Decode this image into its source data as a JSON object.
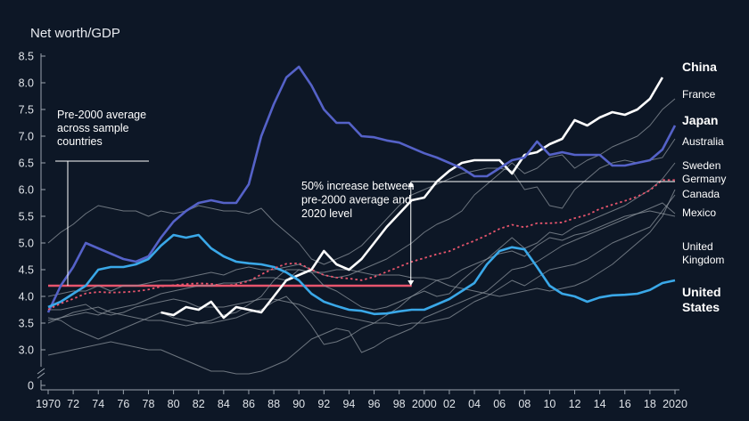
{
  "chart_data": {
    "type": "line",
    "ylabel": "Net worth/GDP",
    "ylim": [
      0,
      8.5
    ],
    "yticks": [
      "8.5",
      "8.0",
      "7.5",
      "7.0",
      "6.5",
      "6.0",
      "5.5",
      "5.0",
      "4.5",
      "4.0",
      "3.5",
      "3.0",
      "0"
    ],
    "ytick_values": [
      8.5,
      8.0,
      7.5,
      7.0,
      6.5,
      6.0,
      5.5,
      5.0,
      4.5,
      4.0,
      3.5,
      3.0,
      2.4
    ],
    "xlim": [
      1970,
      2020
    ],
    "xticks": [
      {
        "x": 1970,
        "label": "1970"
      },
      {
        "x": 1972,
        "label": "72"
      },
      {
        "x": 1974,
        "label": "74"
      },
      {
        "x": 1976,
        "label": "76"
      },
      {
        "x": 1978,
        "label": "78"
      },
      {
        "x": 1980,
        "label": "80"
      },
      {
        "x": 1982,
        "label": "82"
      },
      {
        "x": 1984,
        "label": "84"
      },
      {
        "x": 1986,
        "label": "86"
      },
      {
        "x": 1988,
        "label": "88"
      },
      {
        "x": 1990,
        "label": "90"
      },
      {
        "x": 1992,
        "label": "92"
      },
      {
        "x": 1994,
        "label": "94"
      },
      {
        "x": 1996,
        "label": "96"
      },
      {
        "x": 1998,
        "label": "98"
      },
      {
        "x": 2000,
        "label": "2000"
      },
      {
        "x": 2002,
        "label": "02"
      },
      {
        "x": 2004,
        "label": "04"
      },
      {
        "x": 2006,
        "label": "06"
      },
      {
        "x": 2008,
        "label": "08"
      },
      {
        "x": 2010,
        "label": "10"
      },
      {
        "x": 2012,
        "label": "12"
      },
      {
        "x": 2014,
        "label": "14"
      },
      {
        "x": 2016,
        "label": "16"
      },
      {
        "x": 2018,
        "label": "18"
      },
      {
        "x": 2020,
        "label": "2020"
      }
    ],
    "pre2000_average": 4.2,
    "avg_2020_level": 6.15,
    "annotations": [
      {
        "id": "pre2000",
        "lines": [
          "Pre-2000 average",
          "across sample",
          "countries"
        ]
      },
      {
        "id": "increase",
        "lines": [
          "50% increase between",
          "pre-2000 average and",
          "2020 level"
        ]
      }
    ],
    "series": [
      {
        "name": "China",
        "highlight": "white",
        "label_lines": [
          "China"
        ],
        "start": 1979,
        "values": [
          3.7,
          3.65,
          3.8,
          3.75,
          3.9,
          3.6,
          3.8,
          3.75,
          3.7,
          4.0,
          4.3,
          4.4,
          4.5,
          4.85,
          4.6,
          4.5,
          4.7,
          5.0,
          5.3,
          5.55,
          5.8,
          5.85,
          6.15,
          6.35,
          6.5,
          6.55,
          6.55,
          6.55,
          6.3,
          6.65,
          6.7,
          6.85,
          6.95,
          7.3,
          7.2,
          7.35,
          7.45,
          7.4,
          7.5,
          7.7,
          8.1
        ]
      },
      {
        "name": "France",
        "highlight": "grey",
        "label_lines": [
          "France"
        ],
        "start": 1970,
        "values": [
          4.0,
          4.05,
          4.1,
          4.1,
          4.2,
          4.1,
          4.2,
          4.2,
          4.25,
          4.3,
          4.3,
          4.35,
          4.4,
          4.45,
          4.4,
          4.5,
          4.55,
          4.5,
          4.5,
          4.55,
          4.6,
          4.5,
          4.4,
          4.35,
          4.4,
          4.5,
          4.6,
          4.7,
          4.85,
          5.0,
          5.2,
          5.35,
          5.45,
          5.6,
          5.9,
          6.1,
          6.3,
          6.5,
          6.3,
          6.4,
          6.6,
          6.65,
          6.4,
          6.55,
          6.65,
          6.8,
          6.9,
          7.0,
          7.2,
          7.5,
          7.7
        ]
      },
      {
        "name": "Japan",
        "highlight": "purple",
        "label_lines": [
          "Japan"
        ],
        "start": 1970,
        "values": [
          3.7,
          4.2,
          4.55,
          5.0,
          4.9,
          4.8,
          4.7,
          4.65,
          4.75,
          5.1,
          5.4,
          5.6,
          5.75,
          5.8,
          5.75,
          5.75,
          6.1,
          7.0,
          7.6,
          8.1,
          8.3,
          7.95,
          7.5,
          7.25,
          7.25,
          7.0,
          6.98,
          6.92,
          6.88,
          6.78,
          6.68,
          6.6,
          6.5,
          6.4,
          6.25,
          6.25,
          6.4,
          6.55,
          6.6,
          6.9,
          6.65,
          6.7,
          6.65,
          6.65,
          6.65,
          6.45,
          6.45,
          6.5,
          6.55,
          6.75,
          7.2
        ]
      },
      {
        "name": "Australia",
        "highlight": "grey",
        "label_lines": [
          "Australia"
        ],
        "start": 1970,
        "values": [
          5.0,
          5.2,
          5.35,
          5.55,
          5.7,
          5.65,
          5.6,
          5.6,
          5.5,
          5.6,
          5.55,
          5.6,
          5.7,
          5.65,
          5.6,
          5.6,
          5.55,
          5.65,
          5.4,
          5.2,
          5.0,
          4.7,
          4.6,
          4.7,
          4.8,
          4.95,
          5.2,
          5.45,
          5.7,
          5.9,
          6.0,
          6.1,
          6.2,
          6.3,
          6.35,
          6.4,
          6.4,
          6.35,
          6.0,
          6.05,
          5.7,
          5.65,
          6.0,
          6.2,
          6.4,
          6.5,
          6.55,
          6.5,
          6.55,
          6.6,
          6.95
        ]
      },
      {
        "name": "Sweden",
        "highlight": "grey",
        "label_lines": [
          "Sweden"
        ],
        "start": 1970,
        "values": [
          3.5,
          3.6,
          3.7,
          3.75,
          3.8,
          3.7,
          3.65,
          3.6,
          3.55,
          3.55,
          3.5,
          3.45,
          3.5,
          3.5,
          3.55,
          3.6,
          3.7,
          3.75,
          3.9,
          4.0,
          3.75,
          3.45,
          3.1,
          3.15,
          3.25,
          3.4,
          3.5,
          3.65,
          3.8,
          4.0,
          4.1,
          4.0,
          4.05,
          4.3,
          4.5,
          4.7,
          4.9,
          5.1,
          4.9,
          5.0,
          5.2,
          5.15,
          5.3,
          5.4,
          5.5,
          5.6,
          5.7,
          5.85,
          6.0,
          6.2,
          6.5
        ]
      },
      {
        "name": "Germany",
        "highlight": "grey",
        "label_lines": [
          "Germany"
        ],
        "start": 1970,
        "values": [
          3.55,
          3.6,
          3.65,
          3.7,
          3.65,
          3.75,
          3.8,
          3.85,
          3.95,
          4.05,
          4.1,
          4.15,
          4.2,
          4.2,
          4.25,
          4.25,
          4.3,
          4.35,
          4.35,
          4.3,
          4.5,
          4.45,
          4.45,
          4.5,
          4.5,
          4.45,
          4.4,
          4.4,
          4.4,
          4.35,
          4.35,
          4.3,
          4.2,
          4.15,
          4.1,
          4.05,
          4.0,
          4.05,
          4.1,
          4.15,
          4.1,
          4.15,
          4.2,
          4.3,
          4.45,
          4.6,
          4.8,
          5.0,
          5.2,
          5.5,
          6.0
        ]
      },
      {
        "name": "Canada",
        "highlight": "grey",
        "label_lines": [
          "Canada"
        ],
        "start": 1970,
        "values": [
          3.75,
          3.75,
          3.8,
          3.85,
          3.7,
          3.65,
          3.7,
          3.8,
          3.85,
          3.9,
          3.95,
          3.9,
          3.8,
          3.8,
          3.8,
          3.85,
          3.9,
          3.95,
          3.95,
          3.9,
          3.85,
          3.75,
          3.7,
          3.65,
          3.6,
          3.55,
          3.5,
          3.5,
          3.45,
          3.5,
          3.5,
          3.55,
          3.6,
          3.75,
          3.9,
          4.0,
          4.15,
          4.3,
          4.2,
          4.35,
          4.5,
          4.55,
          4.6,
          4.7,
          4.85,
          5.0,
          5.1,
          5.2,
          5.3,
          5.6,
          5.9
        ]
      },
      {
        "name": "Mexico",
        "highlight": "grey",
        "label_lines": [
          "Mexico"
        ],
        "start": 1970,
        "values": [
          2.9,
          2.95,
          3.0,
          3.05,
          3.1,
          3.15,
          3.1,
          3.05,
          3.0,
          3.0,
          2.9,
          2.8,
          2.7,
          2.6,
          2.6,
          2.55,
          2.55,
          2.6,
          2.7,
          2.8,
          3.0,
          3.2,
          3.3,
          3.4,
          3.35,
          2.95,
          3.05,
          3.2,
          3.3,
          3.4,
          3.6,
          3.7,
          3.8,
          3.9,
          4.0,
          4.1,
          4.3,
          4.5,
          4.55,
          4.65,
          4.8,
          4.95,
          5.05,
          5.15,
          5.25,
          5.35,
          5.45,
          5.55,
          5.65,
          5.75,
          5.55
        ]
      },
      {
        "name": "United Kingdom",
        "highlight": "grey",
        "label_lines": [
          "United",
          "Kingdom"
        ],
        "start": 1970,
        "values": [
          3.6,
          3.55,
          3.4,
          3.3,
          3.2,
          3.3,
          3.4,
          3.5,
          3.6,
          3.7,
          3.6,
          3.55,
          3.5,
          3.55,
          3.65,
          3.7,
          3.85,
          4.0,
          4.3,
          4.5,
          4.5,
          4.45,
          4.2,
          4.1,
          3.95,
          3.8,
          3.75,
          3.8,
          3.9,
          4.0,
          4.15,
          4.3,
          4.35,
          4.5,
          4.6,
          4.7,
          4.8,
          4.85,
          4.75,
          4.95,
          5.1,
          5.05,
          5.15,
          5.2,
          5.3,
          5.4,
          5.5,
          5.55,
          5.6,
          5.55,
          5.5
        ]
      },
      {
        "name": "United States",
        "highlight": "cyan",
        "label_lines": [
          "United",
          "States"
        ],
        "start": 1970,
        "values": [
          3.8,
          3.9,
          4.05,
          4.2,
          4.5,
          4.55,
          4.55,
          4.6,
          4.7,
          4.95,
          5.15,
          5.1,
          5.15,
          4.9,
          4.75,
          4.65,
          4.62,
          4.6,
          4.55,
          4.45,
          4.3,
          4.05,
          3.9,
          3.82,
          3.75,
          3.73,
          3.67,
          3.68,
          3.72,
          3.75,
          3.75,
          3.85,
          3.95,
          4.1,
          4.25,
          4.6,
          4.85,
          4.92,
          4.88,
          4.55,
          4.2,
          4.05,
          4.0,
          3.9,
          3.98,
          4.02,
          4.03,
          4.05,
          4.12,
          4.25,
          4.3
        ]
      }
    ]
  }
}
